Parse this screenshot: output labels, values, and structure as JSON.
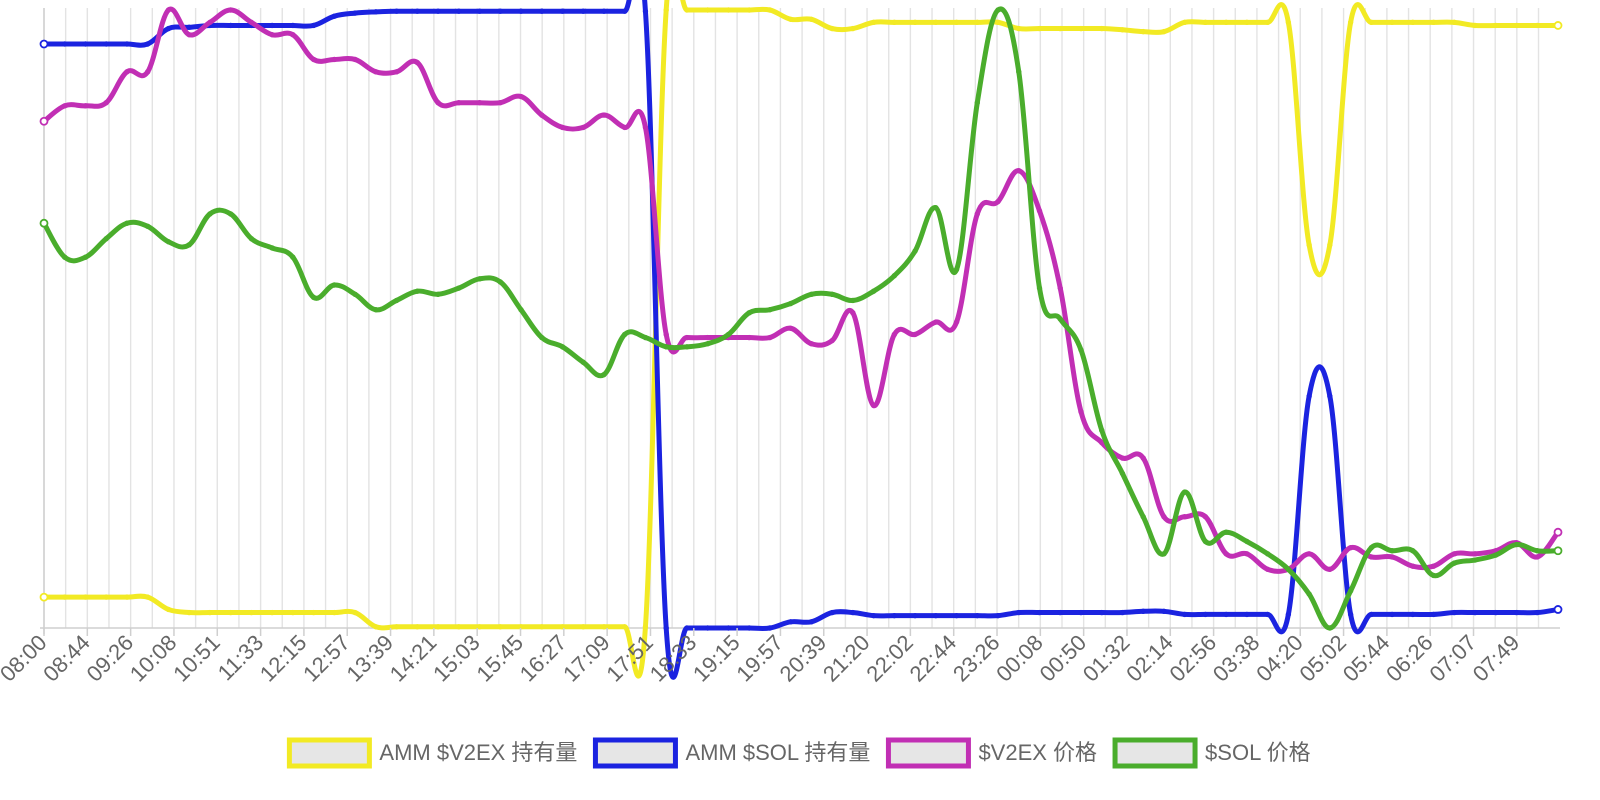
{
  "chart_data": {
    "type": "line",
    "title": "",
    "xlabel": "",
    "ylabel": "",
    "grid": true,
    "legend_position": "bottom",
    "y_axis": "normalized, no tick labels (each series scaled to its own min–max)",
    "x_tick_labels": [
      "08:00",
      "08:44",
      "09:26",
      "10:08",
      "10:51",
      "11:33",
      "12:15",
      "12:57",
      "13:39",
      "14:21",
      "15:03",
      "15:45",
      "16:27",
      "17:09",
      "17:51",
      "18:33",
      "19:15",
      "19:57",
      "20:39",
      "21:20",
      "22:02",
      "22:44",
      "23:26",
      "00:08",
      "00:50",
      "01:32",
      "02:14",
      "02:56",
      "03:38",
      "04:20",
      "05:02",
      "05:44",
      "06:26",
      "07:07",
      "07:49"
    ],
    "series": [
      {
        "name": "AMM $V2EX 持有量",
        "color": "#f2ea24",
        "values": [
          0.05,
          0.05,
          0.05,
          0.05,
          0.05,
          0.05,
          0.03,
          0.025,
          0.025,
          0.025,
          0.025,
          0.025,
          0.025,
          0.025,
          0.025,
          0.025,
          0.002,
          0.002,
          0.002,
          0.002,
          0.002,
          0.002,
          0.002,
          0.002,
          0.002,
          0.002,
          0.002,
          0.002,
          0.002,
          0.002,
          1.0,
          1.0,
          1.0,
          1.0,
          1.0,
          1.0,
          0.985,
          0.985,
          0.97,
          0.97,
          0.98,
          0.98,
          0.98,
          0.98,
          0.98,
          0.98,
          0.98,
          0.97,
          0.97,
          0.97,
          0.97,
          0.97,
          0.968,
          0.965,
          0.965,
          0.98,
          0.98,
          0.98,
          0.98,
          0.98,
          0.98,
          0.62,
          0.62,
          0.98,
          0.98,
          0.98,
          0.98,
          0.98,
          0.98,
          0.975,
          0.975,
          0.975,
          0.975,
          0.975
        ]
      },
      {
        "name": "AMM $SOL 持有量",
        "color": "#1b23e0",
        "values": [
          0.945,
          0.945,
          0.945,
          0.945,
          0.945,
          0.945,
          0.97,
          0.972,
          0.975,
          0.975,
          0.975,
          0.975,
          0.975,
          0.975,
          0.99,
          0.995,
          0.997,
          0.998,
          0.998,
          0.998,
          0.998,
          0.998,
          0.998,
          0.998,
          0.998,
          0.998,
          0.998,
          0.998,
          0.998,
          0.998,
          0.0,
          0.0,
          0.0,
          0.0,
          0.0,
          0.0,
          0.01,
          0.01,
          0.025,
          0.025,
          0.02,
          0.02,
          0.02,
          0.02,
          0.02,
          0.02,
          0.02,
          0.025,
          0.025,
          0.025,
          0.025,
          0.025,
          0.025,
          0.027,
          0.027,
          0.022,
          0.022,
          0.022,
          0.022,
          0.022,
          0.022,
          0.375,
          0.375,
          0.022,
          0.022,
          0.022,
          0.022,
          0.022,
          0.025,
          0.025,
          0.025,
          0.025,
          0.025,
          0.03
        ]
      },
      {
        "name": "$V2EX 价格",
        "color": "#c12fb4",
        "values": [
          0.82,
          0.845,
          0.845,
          0.85,
          0.9,
          0.9,
          1.0,
          0.96,
          0.98,
          1.0,
          0.98,
          0.96,
          0.96,
          0.92,
          0.92,
          0.92,
          0.9,
          0.9,
          0.915,
          0.85,
          0.85,
          0.85,
          0.85,
          0.86,
          0.83,
          0.81,
          0.81,
          0.83,
          0.81,
          0.81,
          0.475,
          0.47,
          0.47,
          0.47,
          0.47,
          0.47,
          0.485,
          0.46,
          0.465,
          0.51,
          0.36,
          0.475,
          0.475,
          0.495,
          0.495,
          0.67,
          0.69,
          0.74,
          0.675,
          0.55,
          0.35,
          0.3,
          0.275,
          0.275,
          0.18,
          0.18,
          0.18,
          0.12,
          0.12,
          0.095,
          0.095,
          0.12,
          0.095,
          0.13,
          0.115,
          0.115,
          0.1,
          0.1,
          0.12,
          0.12,
          0.125,
          0.138,
          0.115,
          0.155
        ]
      },
      {
        "name": "$SOL 价格",
        "color": "#4aad2c",
        "values": [
          0.655,
          0.6,
          0.6,
          0.63,
          0.655,
          0.65,
          0.625,
          0.62,
          0.67,
          0.67,
          0.63,
          0.615,
          0.6,
          0.535,
          0.555,
          0.54,
          0.515,
          0.53,
          0.545,
          0.54,
          0.55,
          0.565,
          0.56,
          0.515,
          0.47,
          0.455,
          0.43,
          0.41,
          0.475,
          0.47,
          0.455,
          0.455,
          0.46,
          0.475,
          0.51,
          0.515,
          0.525,
          0.54,
          0.54,
          0.53,
          0.545,
          0.57,
          0.61,
          0.68,
          0.58,
          0.85,
          1.0,
          0.9,
          0.55,
          0.5,
          0.45,
          0.32,
          0.25,
          0.18,
          0.12,
          0.22,
          0.14,
          0.155,
          0.14,
          0.12,
          0.095,
          0.055,
          0.0,
          0.06,
          0.13,
          0.125,
          0.125,
          0.085,
          0.105,
          0.11,
          0.118,
          0.135,
          0.125,
          0.125
        ]
      }
    ]
  }
}
